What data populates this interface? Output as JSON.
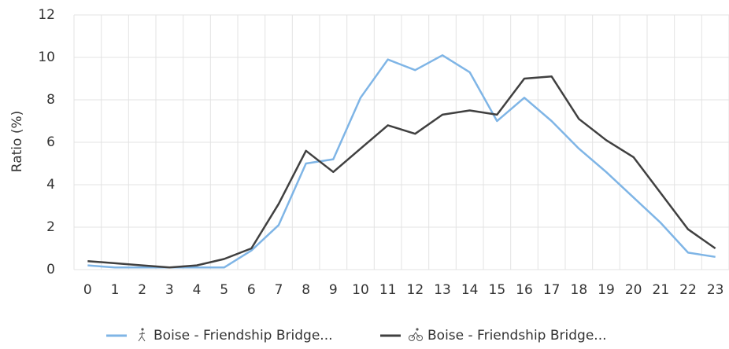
{
  "chart_data": {
    "type": "line",
    "ylabel": "Ratio (%)",
    "categories": [
      "0",
      "1",
      "2",
      "3",
      "4",
      "5",
      "6",
      "7",
      "8",
      "9",
      "10",
      "11",
      "12",
      "13",
      "14",
      "15",
      "16",
      "17",
      "18",
      "19",
      "20",
      "21",
      "22",
      "23"
    ],
    "series": [
      {
        "name": "Boise - Friendship Bridge...",
        "color": "#7fb5e6",
        "values": [
          0.2,
          0.1,
          0.1,
          0.1,
          0.1,
          0.1,
          0.9,
          2.1,
          5.0,
          5.2,
          8.1,
          9.9,
          9.4,
          10.1,
          9.3,
          7.0,
          8.1,
          7.0,
          5.7,
          4.6,
          3.4,
          2.2,
          0.8,
          0.6
        ]
      },
      {
        "name": "Boise - Friendship Bridge...",
        "color": "#404040",
        "values": [
          0.4,
          0.3,
          0.2,
          0.1,
          0.2,
          0.5,
          1.0,
          3.1,
          5.6,
          4.6,
          5.7,
          6.8,
          6.4,
          7.3,
          7.5,
          7.3,
          9.0,
          9.1,
          7.1,
          6.1,
          5.3,
          3.6,
          1.9,
          1.0
        ]
      }
    ],
    "ylim": [
      0,
      12
    ],
    "yticks": [
      0,
      2,
      4,
      6,
      8,
      10,
      12
    ],
    "grid": true
  }
}
